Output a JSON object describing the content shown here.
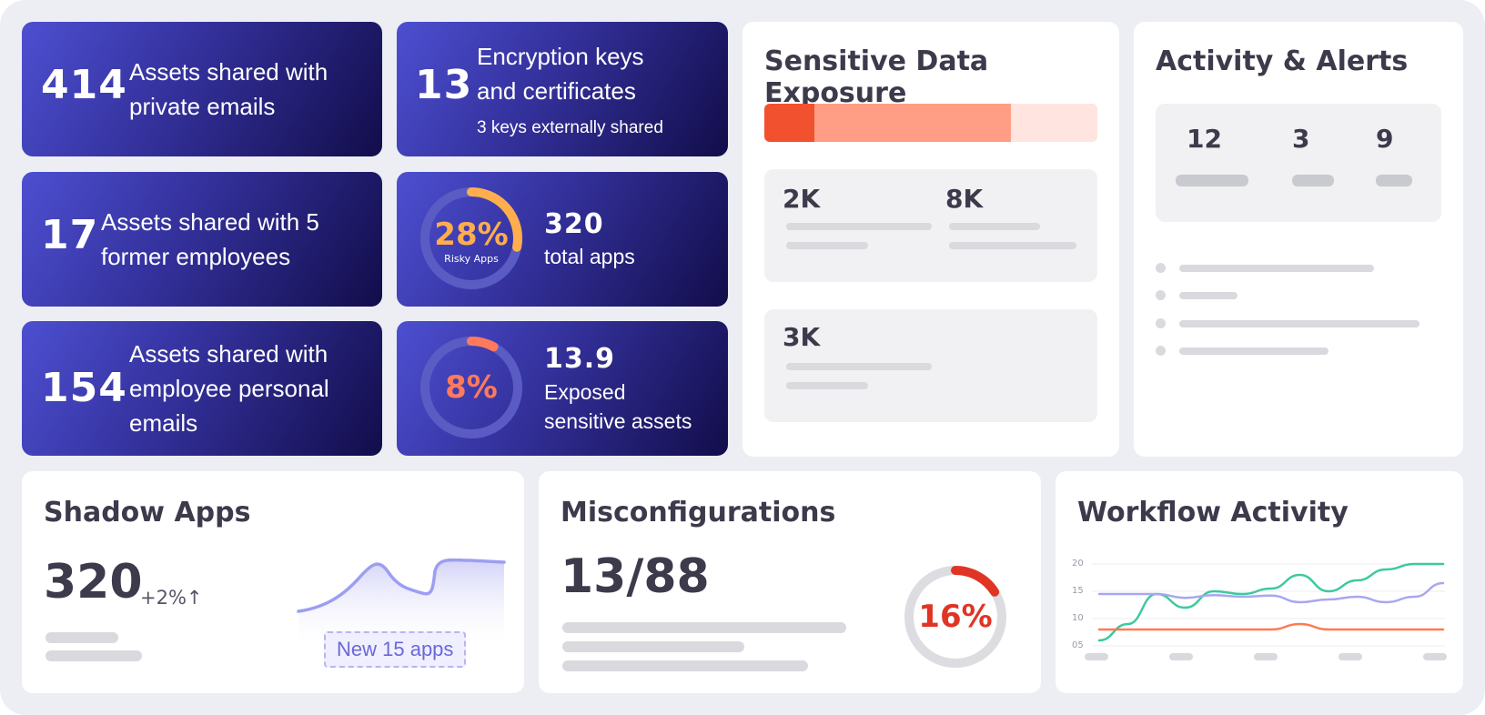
{
  "stats": [
    {
      "value": "414",
      "label": "Assets shared with\nprivate emails"
    },
    {
      "value": "13",
      "label": "Encryption keys\nand certificates",
      "sub": "3 keys externally shared"
    },
    {
      "value": "17",
      "label": "Assets shared with 5\nformer employees"
    },
    {
      "value": "154",
      "label": "Assets shared with\nemployee personal\nemails"
    }
  ],
  "risky_apps": {
    "percent": "28%",
    "percent_value": 28,
    "caption": "Risky Apps",
    "value": "320",
    "label": "total apps",
    "accent": "#ffad4d"
  },
  "exposed": {
    "percent": "8%",
    "percent_value": 8,
    "value": "13.9",
    "label": "Exposed\nsensitive assets",
    "accent": "#ff7a5c"
  },
  "sensitive": {
    "title": "Sensitive Data Exposure",
    "bar_fractions": [
      0.15,
      0.59,
      0.26
    ],
    "bar_colors": [
      "#f25130",
      "#ff9e84",
      "#ffe4e0"
    ],
    "box1": {
      "a": "2K",
      "b": "8K"
    },
    "box2": {
      "a": "3K"
    }
  },
  "activity": {
    "title": "Activity & Alerts",
    "counts": [
      "12",
      "3",
      "9"
    ]
  },
  "shadow": {
    "title": "Shadow Apps",
    "value": "320",
    "delta": "+2%↑",
    "pill": "New 15 apps"
  },
  "misconfig": {
    "title": "Misconfigurations",
    "value": "13/88",
    "percent": "16%",
    "percent_value": 16,
    "accent": "#e03524"
  },
  "workflow": {
    "title": "Workflow Activity",
    "yticks": [
      "20",
      "15",
      "10",
      "05"
    ]
  },
  "chart_data": {
    "type": "line",
    "title": "Workflow Activity",
    "xlabel": "",
    "ylabel": "",
    "ylim": [
      5,
      20
    ],
    "yticks": [
      "20",
      "15",
      "10",
      "05"
    ],
    "grid": true,
    "series": [
      {
        "color": "#3dc9a0",
        "values": [
          6,
          9,
          14.5,
          12,
          15,
          14.5,
          15.5,
          18,
          15,
          17,
          19,
          20,
          20
        ]
      },
      {
        "color": "#a9a7ee",
        "values": [
          14.5,
          14.5,
          14.5,
          13.8,
          14.3,
          14,
          14.2,
          13,
          13.5,
          14,
          13,
          14,
          16.5
        ]
      },
      {
        "color": "#ff7a50",
        "values": [
          8,
          8,
          8,
          8,
          8,
          8,
          8,
          9,
          8,
          8,
          8,
          8,
          8
        ]
      }
    ]
  }
}
